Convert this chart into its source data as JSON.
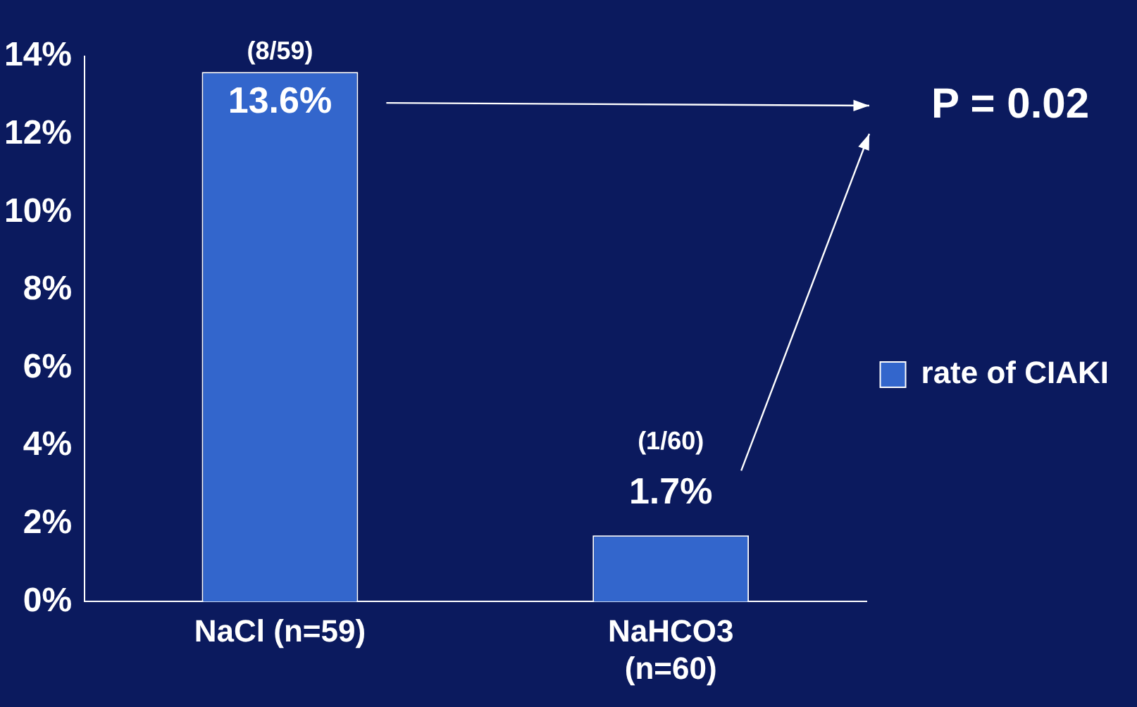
{
  "chart_data": {
    "type": "bar",
    "categories": [
      "NaCl (n=59)",
      "NaHCO3 (n=60)"
    ],
    "series": [
      {
        "name": "rate of CIAKI",
        "color": "#3366cc",
        "values": [
          13.6,
          1.7
        ],
        "value_labels": [
          "13.6%",
          "1.7%"
        ]
      }
    ],
    "ylim": [
      0,
      14
    ],
    "yticks": [
      {
        "value": 0,
        "label": "0%"
      },
      {
        "value": 2,
        "label": "2%"
      },
      {
        "value": 4,
        "label": "4%"
      },
      {
        "value": 6,
        "label": "6%"
      },
      {
        "value": 8,
        "label": "8%"
      },
      {
        "value": 10,
        "label": "10%"
      },
      {
        "value": 12,
        "label": "12%"
      },
      {
        "value": 14,
        "label": "14%"
      }
    ],
    "annotations": [
      "(8/59)",
      "(1/60)",
      "P = 0.02"
    ],
    "legend": "right",
    "grid": false
  }
}
